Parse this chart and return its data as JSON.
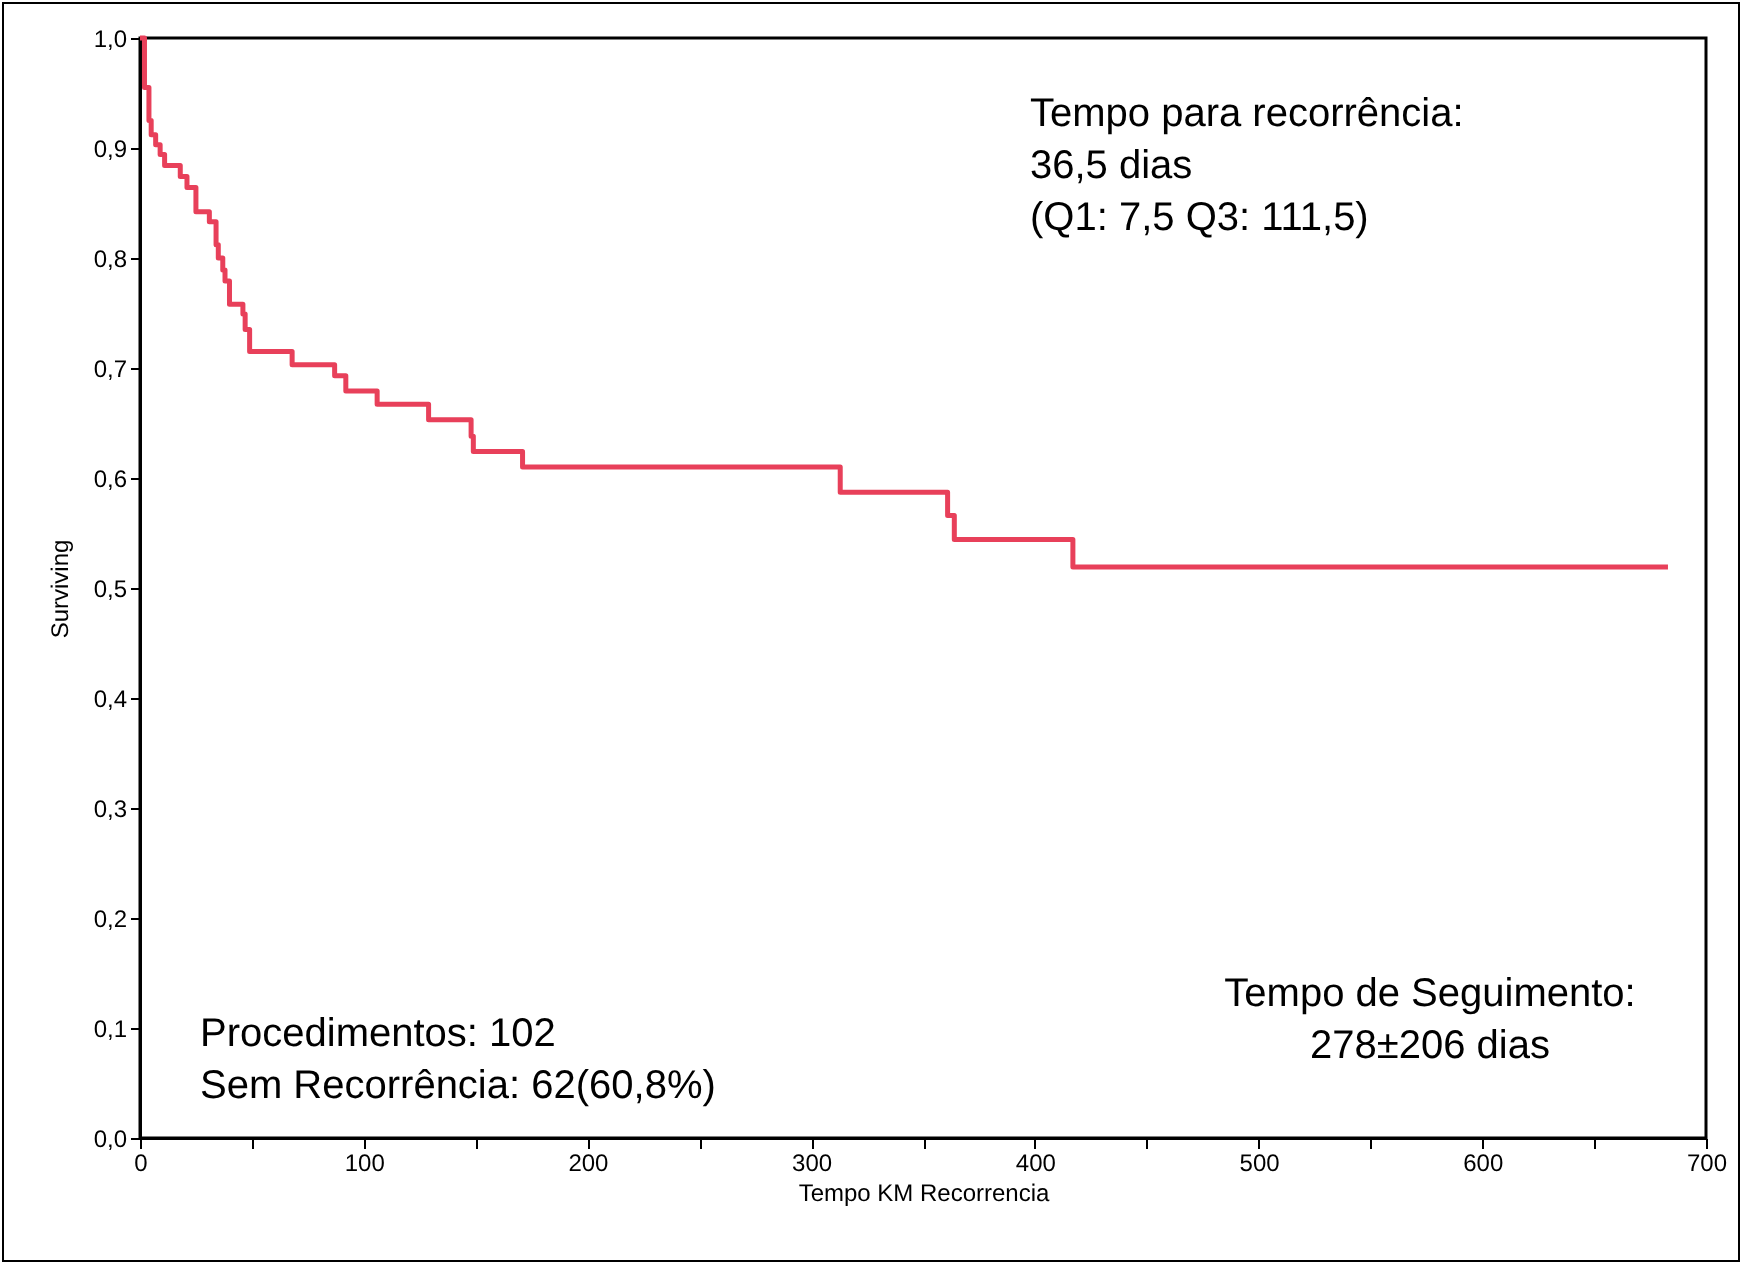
{
  "chart_data": {
    "type": "step",
    "xlabel": "Tempo KM  Recorrencia",
    "ylabel": "Surviving",
    "x": [
      0,
      2,
      4,
      5,
      7,
      9,
      11,
      18,
      21,
      25,
      31,
      34,
      35,
      37,
      38,
      40,
      46,
      47,
      49,
      68,
      87,
      92,
      106,
      129,
      148,
      149,
      171,
      313,
      361,
      364,
      417,
      683
    ],
    "series": [
      {
        "color": "#e8405a",
        "values": [
          1.0,
          0.955,
          0.925,
          0.912,
          0.903,
          0.894,
          0.884,
          0.874,
          0.864,
          0.842,
          0.833,
          0.812,
          0.8,
          0.789,
          0.779,
          0.758,
          0.749,
          0.735,
          0.715,
          0.703,
          0.693,
          0.679,
          0.667,
          0.653,
          0.638,
          0.624,
          0.61,
          0.587,
          0.566,
          0.544,
          0.519,
          0.519
        ]
      }
    ],
    "xlim": [
      0,
      700
    ],
    "xticks": [
      0,
      {
        "value": 50,
        "label": null
      },
      100,
      {
        "value": 150,
        "label": null
      },
      200,
      {
        "value": 250,
        "label": null
      },
      300,
      {
        "value": 350,
        "label": null
      },
      400,
      {
        "value": 450,
        "label": null
      },
      500,
      {
        "value": 550,
        "label": null
      },
      600,
      {
        "value": 650,
        "label": null
      },
      700
    ],
    "ylim": [
      0,
      1
    ],
    "yticks": [
      {
        "value": 0,
        "label": "0,0"
      },
      {
        "value": 0.1,
        "label": "0,1"
      },
      {
        "value": 0.2,
        "label": "0,2"
      },
      {
        "value": 0.3,
        "label": "0,3"
      },
      {
        "value": 0.4,
        "label": "0,4"
      },
      {
        "value": 0.5,
        "label": "0,5"
      },
      {
        "value": 0.6,
        "label": "0,6"
      },
      {
        "value": 0.7,
        "label": "0,7"
      },
      {
        "value": 0.8,
        "label": "0,8"
      },
      {
        "value": 0.9,
        "label": "0,9"
      },
      {
        "value": 1,
        "label": "1,0"
      }
    ],
    "annotations": [
      "Tempo para recorrência:\n36,5 dias\n (Q1: 7,5 Q3: 111,5)",
      "Procedimentos: 102\nSem Recorrência: 62(60,8%)",
      "Tempo de Seguimento:\n278±206 dias"
    ],
    "line_style": "solid",
    "marker": "none",
    "grid": false
  }
}
